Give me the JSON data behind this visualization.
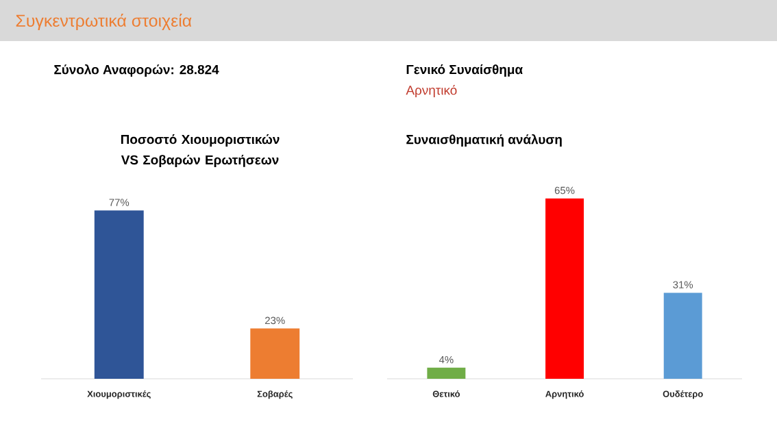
{
  "chart_data": [
    {
      "type": "bar",
      "title": "Ποσοστό Χιουμοριστικών VS Σοβαρών Ερωτήσεων",
      "categories": [
        "Χιουμοριστικές",
        "Σοβαρές"
      ],
      "values": [
        77,
        23
      ],
      "value_labels": [
        "77%",
        "23%"
      ],
      "colors": [
        "#2f5597",
        "#ed7d31"
      ],
      "annotations": [
        "Συγκεντρωτικά στοιχεία",
        "Σύνολο Αναφορών: 28.824"
      ]
    },
    {
      "type": "bar",
      "title": "Συναισθηματική ανάλυση",
      "categories": [
        "Θετικό",
        "Αρνητικό",
        "Ουδέτερο"
      ],
      "values": [
        4,
        65,
        31
      ],
      "value_labels": [
        "4%",
        "65%",
        "31%"
      ],
      "colors": [
        "#70ad47",
        "#ff0000",
        "#5b9bd5"
      ],
      "annotations": [
        "Γενικό Συναίσθημα",
        "Αρνητικό"
      ]
    }
  ]
}
